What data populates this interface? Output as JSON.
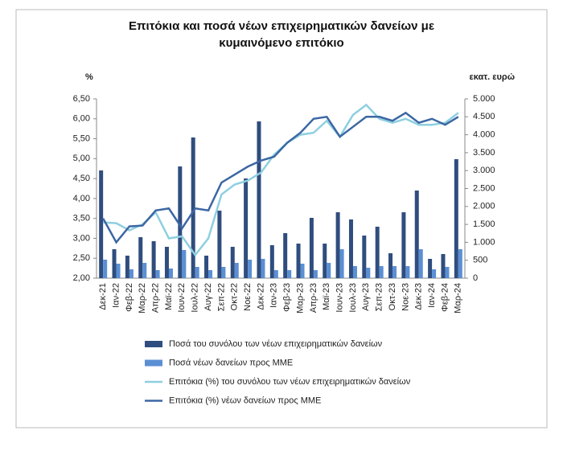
{
  "chart_data": {
    "type": "bar_line",
    "title": "Επιτόκια και ποσά νέων επιχειρηματικών δανείων με κυμαινόμενο επιτόκιο",
    "ylabel": "%",
    "y2label": "εκατ. ευρώ",
    "categories": [
      "Δεκ-21",
      "Ιαν-22",
      "Φεβ-22",
      "Μαρ-22",
      "Απρ-22",
      "Μαϊ-22",
      "Ιουν-22",
      "Ιουλ-22",
      "Αυγ-22",
      "Σεπ-22",
      "Οκτ-22",
      "Νοε-22",
      "Δεκ-22",
      "Ιαν-23",
      "Φεβ-23",
      "Μαρ-23",
      "Απρ-23",
      "Μαϊ-23",
      "Ιουν-23",
      "Ιουλ-23",
      "Αυγ-23",
      "Σεπ-23",
      "Οκτ-23",
      "Νοε-23",
      "Δεκ-23",
      "Ιαν-24",
      "Φεβ-24",
      "Μαρ-24"
    ],
    "ylim": [
      2,
      6.5
    ],
    "yticks": [
      {
        "value": 2,
        "label": "2,00"
      },
      {
        "value": 2.5,
        "label": "2,50"
      },
      {
        "value": 3,
        "label": "3,00"
      },
      {
        "value": 3.5,
        "label": "3,50"
      },
      {
        "value": 4,
        "label": "4,00"
      },
      {
        "value": 4.5,
        "label": "4,50"
      },
      {
        "value": 5,
        "label": "5,00"
      },
      {
        "value": 5.5,
        "label": "5,50"
      },
      {
        "value": 6,
        "label": "6,00"
      },
      {
        "value": 6.5,
        "label": "6,50"
      }
    ],
    "y2lim": [
      0,
      5000
    ],
    "y2ticks": [
      0,
      500,
      {
        "value": 1000,
        "label": "1.000"
      },
      {
        "value": 1500,
        "label": "1.500"
      },
      {
        "value": 2000,
        "label": "2.000"
      },
      {
        "value": 2500,
        "label": "2.500"
      },
      {
        "value": 3000,
        "label": "3.000"
      },
      {
        "value": 3500,
        "label": "3.500"
      },
      {
        "value": 4000,
        "label": "4.000"
      },
      {
        "value": 4500,
        "label": "4.500"
      },
      {
        "value": 5000,
        "label": "5.000"
      }
    ],
    "grid": false,
    "series": [
      {
        "name": "Ποσά του συνόλου των νέων επιχειρηματικών δανείων",
        "kind": "bar",
        "axis": "y2",
        "color": "#2f4d7e",
        "values": [
          3004,
          807,
          628,
          1143,
          1031,
          874,
          3116,
          3924,
          628,
          1883,
          874,
          2780,
          4372,
          919,
          1256,
          964,
          1682,
          964,
          1838,
          1637,
          1188,
          1435,
          695,
          1838,
          2444,
          538,
          673,
          3318
        ]
      },
      {
        "name": "Ποσά νέων δανείων προς ΜΜΕ",
        "kind": "bar",
        "axis": "y2",
        "color": "#5b8fd4",
        "values": [
          516,
          404,
          247,
          426,
          224,
          269,
          785,
          314,
          224,
          314,
          426,
          516,
          538,
          224,
          224,
          404,
          224,
          426,
          807,
          336,
          291,
          336,
          336,
          336,
          807,
          247,
          314,
          807
        ]
      },
      {
        "name": "Επιτόκια (%) του συνόλου των νέων επιχειρηματικών δανείων",
        "kind": "line",
        "color": "#8ecfe0",
        "values": [
          3.4,
          3.38,
          3.2,
          3.35,
          3.65,
          3.0,
          3.05,
          2.58,
          3.0,
          4.1,
          4.35,
          4.45,
          4.65,
          5.1,
          5.4,
          5.6,
          5.65,
          5.95,
          5.55,
          6.1,
          6.35,
          6.0,
          5.9,
          6.0,
          5.85,
          5.85,
          5.9,
          6.15
        ]
      },
      {
        "name": "Επιτόκια (%) νέων δανείων προς ΜΜΕ",
        "kind": "line",
        "color": "#3c67a3",
        "values": [
          3.5,
          2.9,
          3.3,
          3.32,
          3.7,
          3.75,
          3.25,
          3.75,
          3.7,
          4.4,
          4.6,
          4.8,
          4.95,
          5.05,
          5.4,
          5.65,
          6.0,
          6.05,
          5.55,
          5.8,
          6.05,
          6.05,
          5.95,
          6.15,
          5.9,
          6.0,
          5.85,
          6.05
        ]
      }
    ]
  }
}
